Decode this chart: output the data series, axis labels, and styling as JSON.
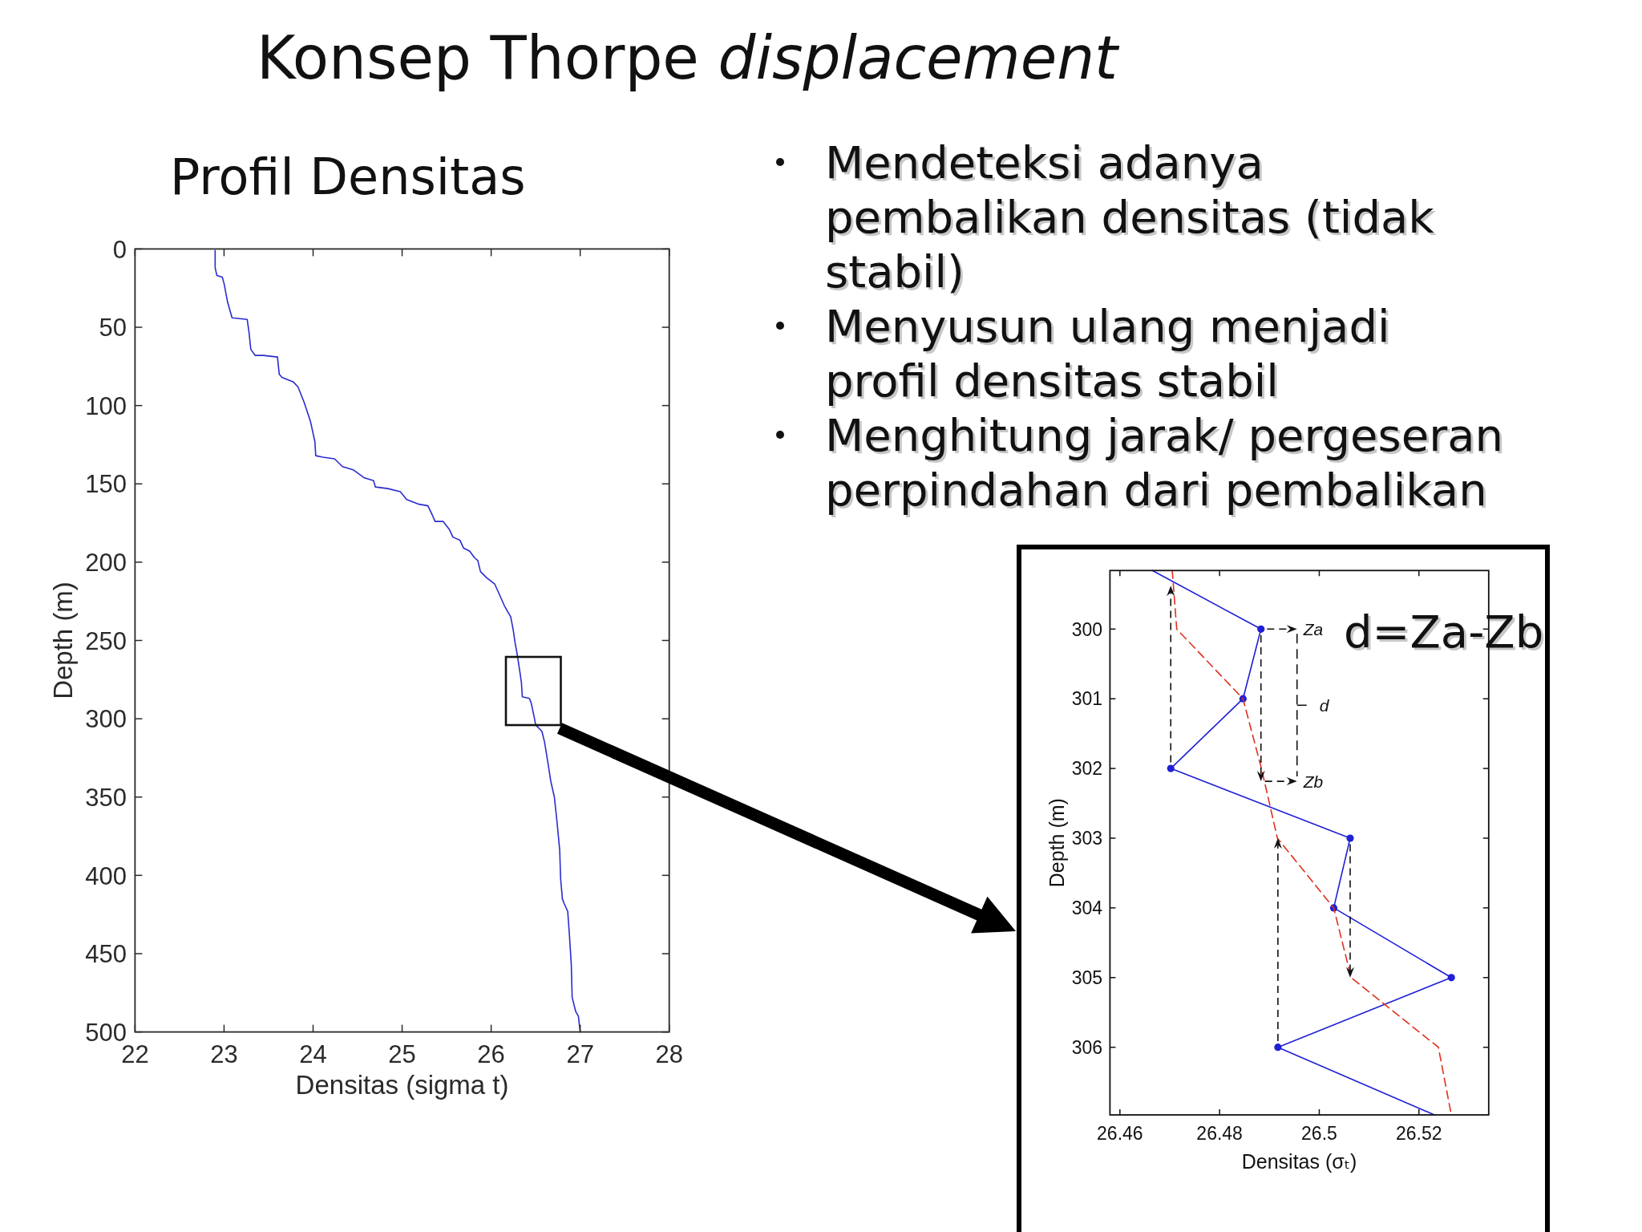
{
  "chart_data": [
    {
      "type": "line",
      "title": "Konsep Thorpe displacement",
      "subtitle": "Profil Densitas",
      "xlabel": "Densitas (sigma t)",
      "ylabel": "Depth (m)",
      "xlim": [
        22,
        28
      ],
      "ylim": [
        500,
        0
      ],
      "xticks": [
        22,
        23,
        24,
        25,
        26,
        27,
        28
      ],
      "yticks": [
        0,
        50,
        100,
        150,
        200,
        250,
        300,
        350,
        400,
        450,
        500
      ],
      "series": [
        {
          "color": "#2b2bd0",
          "x": [
            22.9,
            22.9,
            22.92,
            22.98,
            23.0,
            23.04,
            23.09,
            23.26,
            23.28,
            23.3,
            23.35,
            23.44,
            23.6,
            23.62,
            23.65,
            23.78,
            23.83,
            23.9,
            23.97,
            24.02,
            24.03,
            24.11,
            24.24,
            24.33,
            24.45,
            24.57,
            24.68,
            24.7,
            24.84,
            24.98,
            25.05,
            25.19,
            25.29,
            25.34,
            25.37,
            25.46,
            25.53,
            25.57,
            25.65,
            25.69,
            25.76,
            25.81,
            25.85,
            25.88,
            25.95,
            26.04,
            26.08,
            26.15,
            26.22,
            26.25,
            26.27,
            26.29,
            26.32,
            26.34,
            26.35,
            26.43,
            26.45,
            26.48,
            26.5,
            26.57,
            26.6,
            26.64,
            26.67,
            26.71,
            26.74,
            26.77,
            26.78,
            26.8,
            26.82,
            26.86,
            26.88,
            26.9,
            26.91,
            26.95,
            26.98,
            27.0
          ],
          "values": [
            1,
            12,
            17,
            18,
            22,
            34,
            44,
            45,
            53,
            64,
            68,
            68,
            69,
            80,
            82,
            85,
            88,
            98,
            110,
            123,
            132,
            133,
            134,
            139,
            141,
            146,
            148,
            152,
            153,
            155,
            160,
            163,
            164,
            170,
            174,
            174,
            179,
            184,
            186,
            191,
            193,
            197,
            199,
            206,
            210,
            214,
            219,
            228,
            235,
            244,
            252,
            258,
            269,
            277,
            286,
            287,
            290,
            298,
            304,
            308,
            315,
            329,
            340,
            350,
            366,
            384,
            402,
            415,
            418,
            423,
            439,
            457,
            478,
            487,
            490,
            500
          ]
        }
      ]
    },
    {
      "type": "other",
      "annotations": [
        "Mendeteksi adanya\npembalikan densitas (tidak\nstabil)",
        "Menyusun ulang menjadi\nprofil densitas stabil",
        "Menghitung jarak/ pergeseran\nperpindahan dari pembalikan"
      ]
    },
    {
      "type": "line",
      "xlabel": "Densitas (σₜ)",
      "ylabel": "Depth (m)",
      "xlim": [
        26.458,
        26.534
      ],
      "ylim": [
        306.97,
        299.16
      ],
      "xticks": [
        26.46,
        26.48,
        26.5,
        26.52
      ],
      "yticks": [
        300,
        301,
        302,
        303,
        304,
        305,
        306
      ],
      "series": [
        {
          "color": "#1f1fd6",
          "x": [
            26.4665,
            26.4883,
            26.4847,
            26.4702,
            26.5062,
            26.5029,
            26.5265,
            26.4917,
            26.5231
          ],
          "values": [
            299.16,
            300,
            301,
            302,
            303,
            304,
            305,
            306,
            306.97
          ]
        },
        {
          "type": "scatter",
          "color": "#1f1fd6",
          "marker": "circle",
          "x": [
            26.4883,
            26.4847,
            26.4702,
            26.5062,
            26.5029,
            26.5265,
            26.4917
          ],
          "values": [
            300,
            301,
            302,
            303,
            304,
            305,
            306
          ]
        },
        {
          "color": "#e0301e",
          "line_style": "dashed",
          "x": [
            26.4705,
            26.4714,
            26.4847,
            26.4884,
            26.4916,
            26.5029,
            26.5064,
            26.5239,
            26.5265
          ],
          "values": [
            299.16,
            300,
            301,
            302,
            303,
            304,
            305,
            306,
            306.97
          ]
        }
      ],
      "annotations": [
        "Za",
        "d",
        "Zb",
        "d=Za-Zb"
      ]
    }
  ]
}
